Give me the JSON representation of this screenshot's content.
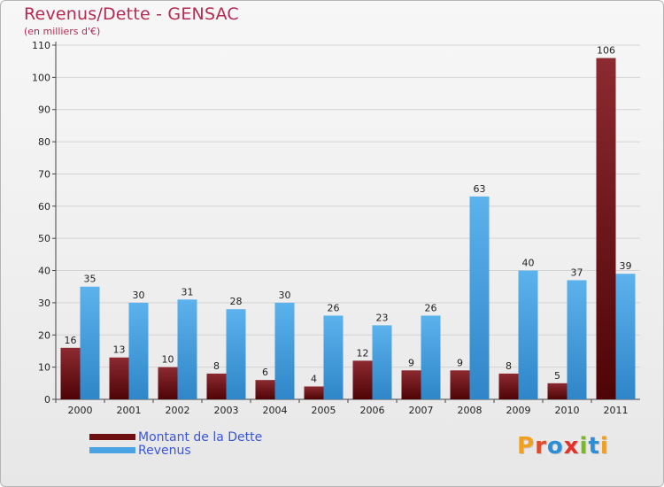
{
  "title": "Revenus/Dette - GENSAC",
  "subtitle": "(en milliers d'€)",
  "logo": {
    "text": "Proxiti",
    "letters": [
      {
        "ch": "P",
        "color": "#f0a020"
      },
      {
        "ch": "r",
        "color": "#e04a2a"
      },
      {
        "ch": "o",
        "color": "#2a8fd8"
      },
      {
        "ch": "x",
        "color": "#e0322a"
      },
      {
        "ch": "i",
        "color": "#7ab82a"
      },
      {
        "ch": "t",
        "color": "#2a8fd8"
      },
      {
        "ch": "i",
        "color": "#f0a020"
      }
    ]
  },
  "chart_data": {
    "type": "bar",
    "title": "Revenus/Dette - GENSAC",
    "ylabel": "(en milliers d'€)",
    "xlabel": "",
    "categories": [
      "2000",
      "2001",
      "2002",
      "2003",
      "2004",
      "2005",
      "2006",
      "2007",
      "2008",
      "2009",
      "2010",
      "2011"
    ],
    "series": [
      {
        "name": "Montant de la Dette",
        "color": "#6e0f12",
        "values": [
          16,
          13,
          10,
          8,
          6,
          4,
          12,
          9,
          9,
          8,
          5,
          106
        ]
      },
      {
        "name": "Revenus",
        "color": "#4aa3e2",
        "values": [
          35,
          30,
          31,
          28,
          30,
          26,
          23,
          26,
          63,
          40,
          37,
          39
        ]
      }
    ],
    "ylim": [
      0,
      110
    ],
    "yticks": [
      0,
      10,
      20,
      30,
      40,
      50,
      60,
      70,
      80,
      90,
      100,
      110
    ],
    "grid": true,
    "legend": "bottom-left"
  }
}
